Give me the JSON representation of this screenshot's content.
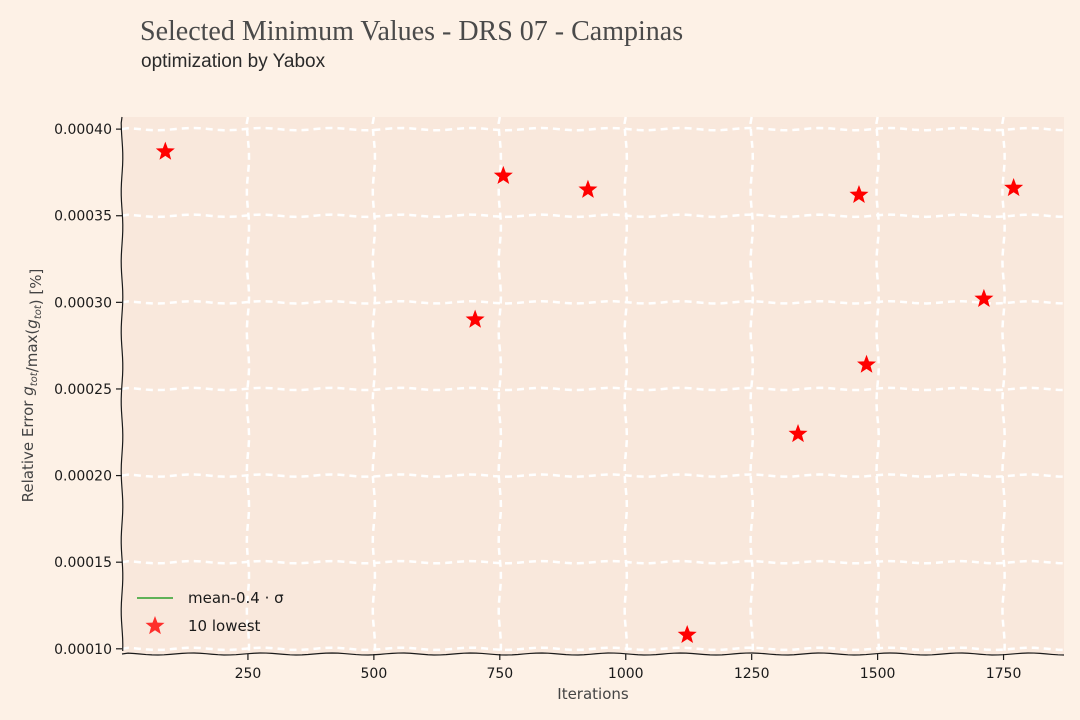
{
  "header": {
    "title": "Selected Minimum Values - DRS 07 - Campinas",
    "subtitle": "optimization by Yabox"
  },
  "colors": {
    "background": "#fdf1e6",
    "plot_background": "#f9e8dc",
    "grid": "#ffffff",
    "marker": "#ff0000",
    "mean_line": "#2ca02c"
  },
  "chart_data": {
    "type": "scatter",
    "title": "Selected Minimum Values - DRS 07 - Campinas",
    "subtitle": "optimization by Yabox",
    "xlabel": "Iterations",
    "ylabel": "Relative Error g_tot/max(g_tot) [%]",
    "xlim": [
      0,
      1870
    ],
    "ylim": [
      9.7e-05,
      0.000407
    ],
    "x_ticks": [
      250,
      500,
      750,
      1000,
      1250,
      1500,
      1750
    ],
    "x_tick_labels": [
      "250",
      "500",
      "750",
      "1000",
      "1250",
      "1500",
      "1750"
    ],
    "y_ticks": [
      0.0001,
      0.00015,
      0.0002,
      0.00025,
      0.0003,
      0.00035,
      0.0004
    ],
    "y_tick_labels": [
      "0.00010",
      "0.00015",
      "0.00020",
      "0.00025",
      "0.00030",
      "0.00035",
      "0.00040"
    ],
    "grid": true,
    "legend_position": "lower-left",
    "series": [
      {
        "name": "mean-0.4 · σ",
        "type": "line",
        "points": []
      },
      {
        "name": "10 lowest",
        "type": "scatter",
        "marker": "star",
        "points": [
          {
            "x": 86,
            "y": 0.000387
          },
          {
            "x": 701,
            "y": 0.00029
          },
          {
            "x": 757,
            "y": 0.000373
          },
          {
            "x": 925,
            "y": 0.000365
          },
          {
            "x": 1122,
            "y": 0.000108
          },
          {
            "x": 1342,
            "y": 0.000224
          },
          {
            "x": 1463,
            "y": 0.000362
          },
          {
            "x": 1478,
            "y": 0.000264
          },
          {
            "x": 1711,
            "y": 0.000302
          },
          {
            "x": 1770,
            "y": 0.000366
          }
        ]
      }
    ]
  }
}
